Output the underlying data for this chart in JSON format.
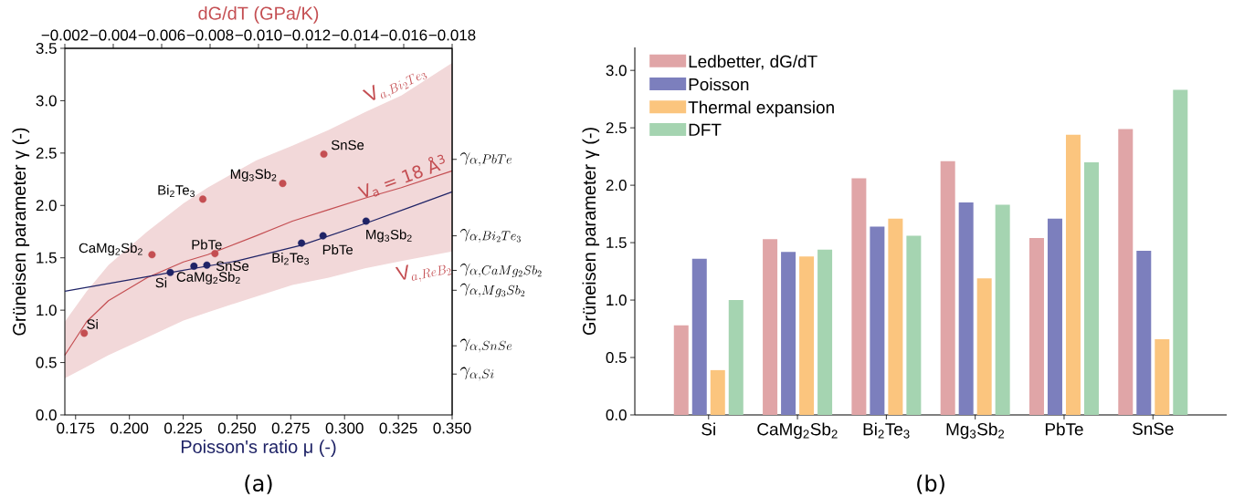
{
  "chart_data": [
    {
      "type": "scatter",
      "xlabel": "Poisson's ratio μ (-)",
      "x2label": "dG/dT (GPa/K)",
      "ylabel": "Grüneisen parameter γ (-)",
      "xlim": [
        0.17,
        0.35
      ],
      "xticks": [
        {
          "value": 0.175,
          "label": "0.175"
        },
        {
          "value": 0.2,
          "label": "0.200"
        },
        {
          "value": 0.225,
          "label": "0.225"
        },
        {
          "value": 0.25,
          "label": "0.250"
        },
        {
          "value": 0.275,
          "label": "0.275"
        },
        {
          "value": 0.3,
          "label": "0.300"
        },
        {
          "value": 0.325,
          "label": "0.325"
        },
        {
          "value": 0.35,
          "label": "0.350"
        }
      ],
      "x2lim": [
        -0.002,
        -0.018
      ],
      "x2ticks": [
        {
          "value": -0.002,
          "label": "−0.002"
        },
        {
          "value": -0.004,
          "label": "−0.004"
        },
        {
          "value": -0.006,
          "label": "−0.006"
        },
        {
          "value": -0.008,
          "label": "−0.008"
        },
        {
          "value": -0.01,
          "label": "−0.010"
        },
        {
          "value": -0.012,
          "label": "−0.012"
        },
        {
          "value": -0.014,
          "label": "−0.014"
        },
        {
          "value": -0.016,
          "label": "−0.016"
        },
        {
          "value": -0.018,
          "label": "−0.018"
        }
      ],
      "ylim": [
        0,
        3.5
      ],
      "yticks": [
        {
          "value": 0,
          "label": "0.0"
        },
        {
          "value": 0.5,
          "label": "0.5"
        },
        {
          "value": 1,
          "label": "1.0"
        },
        {
          "value": 1.5,
          "label": "1.5"
        },
        {
          "value": 2,
          "label": "2.0"
        },
        {
          "value": 2.5,
          "label": "2.5"
        },
        {
          "value": 3,
          "label": "3.0"
        },
        {
          "value": 3.5,
          "label": "3.5"
        }
      ],
      "ref_lines": [
        {
          "axis": "y",
          "value": 2.44,
          "label": "\\gamma_{\\alpha, PbTe}"
        },
        {
          "axis": "y",
          "value": 1.71,
          "label": "\\gamma_{\\alpha, Bi_2Te_3}"
        },
        {
          "axis": "y",
          "value": 1.38,
          "label": "\\gamma_{\\alpha, CaMg_2Sb_2}"
        },
        {
          "axis": "y",
          "value": 1.19,
          "label": "\\gamma_{\\alpha, Mg_3Sb_2}"
        },
        {
          "axis": "y",
          "value": 0.66,
          "label": "\\gamma_{\\alpha, SnSe}"
        },
        {
          "axis": "y",
          "value": 0.39,
          "label": "\\gamma_{\\alpha, Si}"
        }
      ],
      "grid": false,
      "series": [
        {
          "type": "line",
          "axis": "x2",
          "name": "V$_{a}$ = 18 Å$^{3}$",
          "color": "#c44e52",
          "x": [
            -0.002,
            -0.0029,
            -0.0038,
            -0.0054,
            -0.0069,
            -0.0079,
            -0.0099,
            -0.0114,
            -0.0129,
            -0.0144,
            -0.0159,
            -0.018
          ],
          "values": [
            0.57,
            0.89,
            1.09,
            1.31,
            1.46,
            1.53,
            1.71,
            1.85,
            1.96,
            2.07,
            2.17,
            2.33
          ],
          "lower": [
            0.35,
            0.46,
            0.57,
            0.74,
            0.9,
            0.98,
            1.13,
            1.24,
            1.31,
            1.4,
            1.47,
            1.56
          ],
          "upper": [
            0.89,
            1.18,
            1.43,
            1.75,
            2.02,
            2.17,
            2.43,
            2.57,
            2.72,
            2.89,
            3.05,
            3.36
          ]
        },
        {
          "type": "scatter",
          "axis": "x2",
          "color": "#c44e52",
          "x": [
            -0.0028,
            -0.0056,
            -0.0077,
            -0.011,
            -0.0082,
            -0.0127
          ],
          "values": [
            0.78,
            1.53,
            2.06,
            2.21,
            1.54,
            2.49
          ]
        },
        {
          "type": "line",
          "color": "#1f2366",
          "x": [
            0.17,
            0.2,
            0.219,
            0.25,
            0.28,
            0.31,
            0.33,
            0.35
          ],
          "values": [
            1.18,
            1.29,
            1.36,
            1.47,
            1.62,
            1.83,
            1.98,
            2.13
          ]
        },
        {
          "type": "scatter",
          "color": "#1f2366",
          "x": [
            0.219,
            0.23,
            0.28,
            0.31,
            0.29,
            0.236
          ],
          "values": [
            1.36,
            1.42,
            1.64,
            1.85,
            1.71,
            1.43
          ]
        }
      ],
      "annotations": [
        "Si",
        "CaMg$_{2}$Sb$_{2}$",
        "Bi$_{2}$Te$_{3}$",
        "Mg$_{3}$Sb$_{2}$",
        "PbTe",
        "SnSe",
        "Si",
        "CaMg$_{2}$Sb$_{2}$",
        "Bi$_{2}$Te$_{3}$",
        "Mg$_{3}$Sb$_{2}$",
        "PbTe",
        "SnSe",
        "\\mathrm{V}_{a, Bi_2Te_3}",
        "\\mathrm{V}_{a, ReB_2}",
        "(a)"
      ]
    },
    {
      "type": "bar",
      "ylabel": "Grüneisen parameter γ (-)",
      "categories": [
        "Si",
        "CaMg$_{2}$Sb$_{2}$",
        "Bi$_{2}$Te$_{3}$",
        "Mg$_{3}$Sb$_{2}$",
        "PbTe",
        "SnSe"
      ],
      "ylim": [
        0,
        3.2
      ],
      "yticks": [
        {
          "value": 0,
          "label": "0.0"
        },
        {
          "value": 0.5,
          "label": "0.5"
        },
        {
          "value": 1,
          "label": "1.0"
        },
        {
          "value": 1.5,
          "label": "1.5"
        },
        {
          "value": 2,
          "label": "2.0"
        },
        {
          "value": 2.5,
          "label": "2.5"
        },
        {
          "value": 3,
          "label": "3.0"
        }
      ],
      "legend": "top left",
      "grid": false,
      "series": [
        {
          "name": "Ledbetter, dG/dT",
          "color": "#e0a5a7",
          "values": [
            0.78,
            1.53,
            2.06,
            2.21,
            1.54,
            2.49
          ]
        },
        {
          "name": "Poisson",
          "color": "#7c7fbd",
          "values": [
            1.36,
            1.42,
            1.64,
            1.85,
            1.71,
            1.43
          ]
        },
        {
          "name": "Thermal expansion",
          "color": "#fbc57e",
          "values": [
            0.39,
            1.38,
            1.71,
            1.19,
            2.44,
            0.66
          ]
        },
        {
          "name": "DFT",
          "color": "#a5d4b1",
          "values": [
            1.0,
            1.44,
            1.56,
            1.83,
            2.2,
            2.83
          ]
        }
      ],
      "annotations": [
        "(b)"
      ]
    }
  ]
}
